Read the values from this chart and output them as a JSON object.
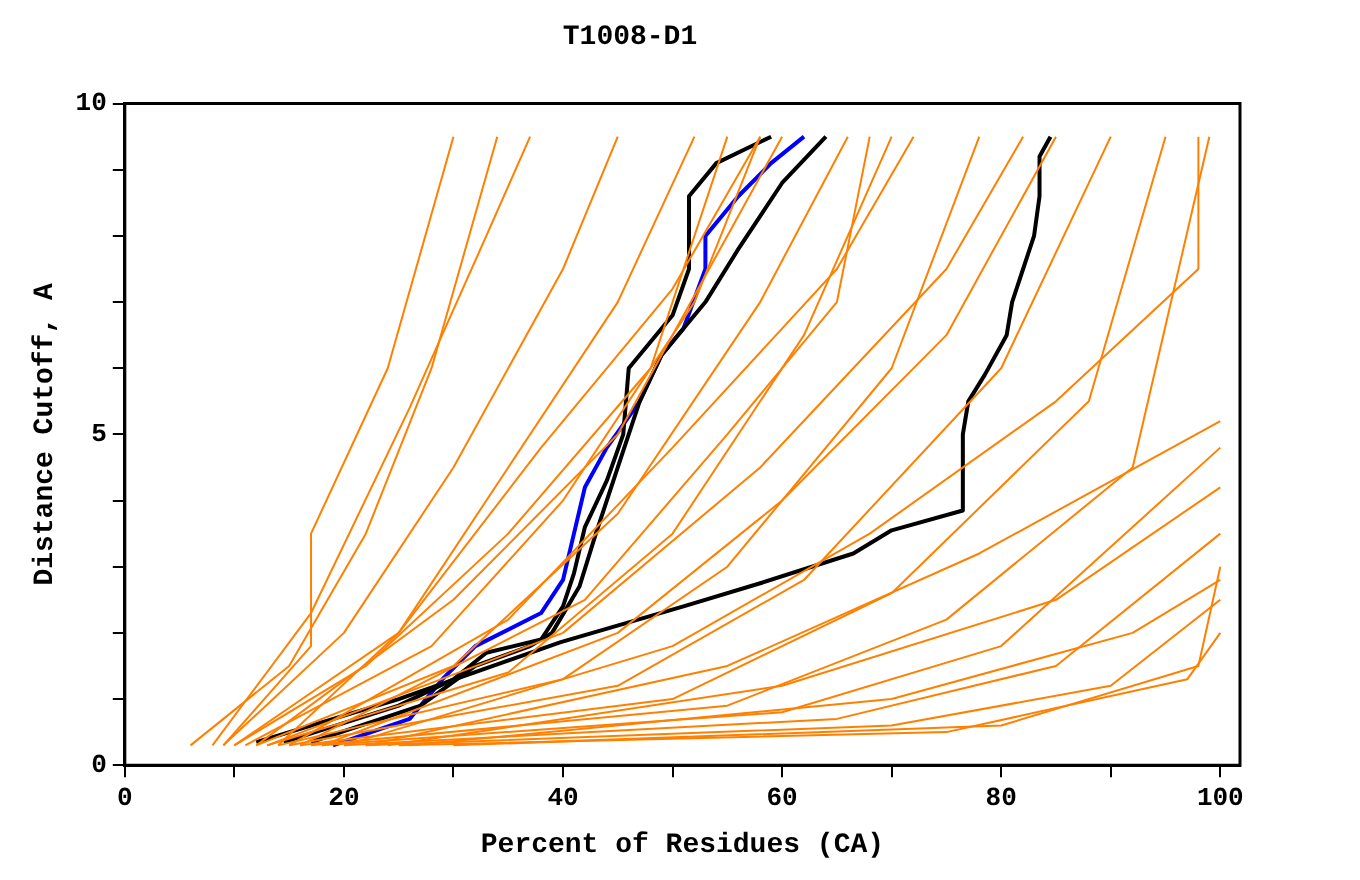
{
  "chart_data": {
    "type": "line",
    "title": "T1008-D1",
    "xlabel": "Percent of Residues (CA)",
    "ylabel": "Distance Cutoff, A",
    "xlim": [
      0,
      101.8
    ],
    "ylim": [
      0,
      10
    ],
    "xticks": [
      0,
      {
        "value": 10,
        "label": null
      },
      20,
      {
        "value": 30,
        "label": null
      },
      40,
      {
        "value": 50,
        "label": null
      },
      60,
      {
        "value": 70,
        "label": null
      },
      80,
      {
        "value": 90,
        "label": null
      },
      100
    ],
    "yticks": [
      0,
      {
        "value": 1,
        "label": null
      },
      {
        "value": 2,
        "label": null
      },
      {
        "value": 3,
        "label": null
      },
      {
        "value": 4,
        "label": null
      },
      5,
      {
        "value": 6,
        "label": null
      },
      {
        "value": 7,
        "label": null
      },
      {
        "value": 8,
        "label": null
      },
      {
        "value": 9,
        "label": null
      },
      10
    ],
    "grid": false,
    "legend": false,
    "marker": "none",
    "line_style": "solid",
    "series": [
      {
        "color": "#ff8000",
        "x": [
          6,
          15,
          22,
          28,
          34
        ],
        "values": [
          0.3,
          1.5,
          3.5,
          6,
          9.5
        ]
      },
      {
        "color": "#ff8000",
        "x": [
          8,
          17,
          26,
          33,
          37
        ],
        "values": [
          0.3,
          2.3,
          5.4,
          8,
          9.5
        ]
      },
      {
        "color": "#ff8000",
        "x": [
          9,
          20,
          30,
          40,
          45
        ],
        "values": [
          0.3,
          2,
          4.5,
          7.5,
          9.5
        ]
      },
      {
        "color": "#ff8000",
        "x": [
          10,
          25,
          35,
          45,
          52
        ],
        "values": [
          0.3,
          2,
          4.5,
          7,
          9.5
        ]
      },
      {
        "color": "#ff8000",
        "x": [
          11,
          28,
          40,
          52,
          58
        ],
        "values": [
          0.3,
          1.8,
          4,
          7,
          9.5
        ]
      },
      {
        "color": "#ff8000",
        "x": [
          12,
          30,
          45,
          58,
          66
        ],
        "values": [
          0.3,
          1.5,
          3.8,
          7,
          9.5
        ]
      },
      {
        "color": "#ff8000",
        "x": [
          13,
          35,
          50,
          62,
          70
        ],
        "values": [
          0.3,
          1.4,
          3.5,
          6.5,
          9.5
        ]
      },
      {
        "color": "#ff8000",
        "x": [
          14,
          40,
          55,
          70,
          78
        ],
        "values": [
          0.3,
          1.3,
          3,
          6,
          9.5
        ]
      },
      {
        "color": "#ff8000",
        "x": [
          15,
          45,
          62,
          80,
          90
        ],
        "values": [
          0.3,
          1.2,
          2.8,
          6,
          9.5
        ]
      },
      {
        "color": "#ff8000",
        "x": [
          16,
          50,
          70,
          88,
          95
        ],
        "values": [
          0.3,
          1,
          2.6,
          5.5,
          9.5
        ]
      },
      {
        "color": "#ff8000",
        "x": [
          17,
          55,
          75,
          92,
          99
        ],
        "values": [
          0.3,
          0.9,
          2.2,
          4.5,
          9.5
        ]
      },
      {
        "color": "#ff8000",
        "x": [
          18,
          60,
          80,
          100
        ],
        "values": [
          0.3,
          0.8,
          1.8,
          4.8
        ]
      },
      {
        "color": "#ff8000",
        "x": [
          20,
          65,
          85,
          100
        ],
        "values": [
          0.3,
          0.7,
          1.5,
          3.5
        ]
      },
      {
        "color": "#ff8000",
        "x": [
          22,
          70,
          90,
          100
        ],
        "values": [
          0.3,
          0.6,
          1.2,
          2.5
        ]
      },
      {
        "color": "#ff8000",
        "x": [
          25,
          75,
          97,
          100
        ],
        "values": [
          0.3,
          0.5,
          1.3,
          2
        ]
      },
      {
        "color": "#ff8000",
        "x": [
          10,
          22,
          35,
          48,
          55
        ],
        "values": [
          0.3,
          1.5,
          3.5,
          6,
          9.5
        ]
      },
      {
        "color": "#ff8000",
        "x": [
          12,
          30,
          45,
          55,
          60
        ],
        "values": [
          0.3,
          2.5,
          5,
          8,
          9.5
        ]
      },
      {
        "color": "#ff8000",
        "x": [
          15,
          35,
          50,
          65,
          72
        ],
        "values": [
          0.3,
          2.2,
          4.8,
          7.5,
          9.5
        ]
      },
      {
        "color": "#ff8000",
        "x": [
          18,
          45,
          60,
          75,
          85
        ],
        "values": [
          0.3,
          2,
          4,
          6.5,
          9.5
        ]
      },
      {
        "color": "#ff8000",
        "x": [
          20,
          50,
          68,
          85,
          98,
          98
        ],
        "values": [
          0.3,
          1.8,
          3.5,
          5.5,
          7.5,
          9.5
        ]
      },
      {
        "color": "#ff8000",
        "x": [
          22,
          55,
          78,
          100
        ],
        "values": [
          0.3,
          1.5,
          3.2,
          5.2
        ]
      },
      {
        "color": "#ff8000",
        "x": [
          24,
          60,
          85,
          100
        ],
        "values": [
          0.3,
          1.2,
          2.5,
          4.2
        ]
      },
      {
        "color": "#ff8000",
        "x": [
          26,
          70,
          92,
          100
        ],
        "values": [
          0.3,
          1,
          2,
          2.8
        ]
      },
      {
        "color": "#ff8000",
        "x": [
          9,
          17,
          17,
          24,
          30
        ],
        "values": [
          0.3,
          1.8,
          3.5,
          6,
          9.5
        ]
      },
      {
        "color": "#ff8000",
        "x": [
          14,
          25,
          38,
          50,
          58
        ],
        "values": [
          0.3,
          2,
          4.8,
          7.2,
          9.5
        ]
      },
      {
        "color": "#ff8000",
        "x": [
          30,
          80,
          98,
          100
        ],
        "values": [
          0.3,
          0.6,
          1.5,
          3
        ]
      },
      {
        "color": "#ff8000",
        "x": [
          13,
          40,
          58,
          75,
          82
        ],
        "values": [
          0.3,
          2,
          4.5,
          7.5,
          9.5
        ]
      },
      {
        "color": "#ff8000",
        "x": [
          16,
          42,
          55,
          65,
          68
        ],
        "values": [
          0.3,
          2.5,
          5,
          7,
          9.5
        ]
      },
      {
        "color": "#000000",
        "x": [
          12,
          25,
          39.8,
          51,
          58,
          66.5,
          70,
          76.5,
          76.5,
          77,
          78.5,
          80.5,
          81,
          82,
          83,
          83.5,
          83.5,
          84.5
        ],
        "values": [
          0.35,
          1,
          1.86,
          2.4,
          2.75,
          3.2,
          3.55,
          3.85,
          5,
          5.5,
          5.9,
          6.5,
          7,
          7.5,
          8,
          8.6,
          9.2,
          9.5
        ]
      },
      {
        "color": "#000000",
        "x": [
          14.5,
          25,
          30,
          33,
          38,
          40,
          41,
          42,
          44,
          45.5,
          46,
          50,
          51.5,
          51.5,
          54,
          59
        ],
        "values": [
          0.35,
          0.9,
          1.3,
          1.7,
          1.9,
          2.4,
          2.9,
          3.6,
          4.3,
          5,
          6,
          6.8,
          7.5,
          8.6,
          9.1,
          9.5
        ]
      },
      {
        "color": "#000000",
        "x": [
          17,
          27,
          32,
          37,
          39,
          41.5,
          43,
          45,
          47,
          49,
          53,
          56,
          60,
          64
        ],
        "values": [
          0.35,
          0.9,
          1.5,
          1.8,
          2,
          2.7,
          3.5,
          4.5,
          5.5,
          6.2,
          7,
          7.8,
          8.8,
          9.5
        ]
      },
      {
        "color": "#0000ff",
        "x": [
          19,
          26,
          29,
          32,
          38,
          40,
          41,
          42,
          44,
          47,
          49,
          51,
          53,
          53,
          56,
          59,
          62
        ],
        "values": [
          0.3,
          0.7,
          1.3,
          1.8,
          2.3,
          2.8,
          3.5,
          4.2,
          4.8,
          5.5,
          6.2,
          6.6,
          7.5,
          8,
          8.6,
          9.1,
          9.5
        ]
      }
    ]
  }
}
